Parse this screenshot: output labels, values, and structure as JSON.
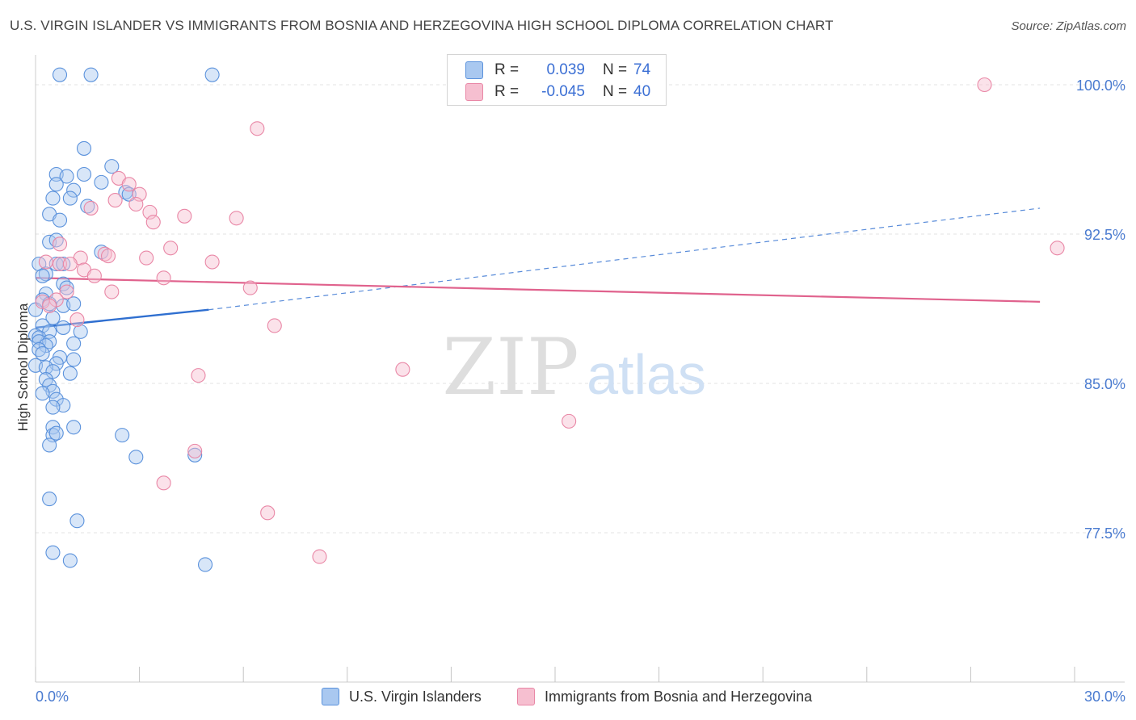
{
  "title": "U.S. VIRGIN ISLANDER VS IMMIGRANTS FROM BOSNIA AND HERZEGOVINA HIGH SCHOOL DIPLOMA CORRELATION CHART",
  "source": "Source: ZipAtlas.com",
  "watermark": {
    "zip": "ZIP",
    "atlas": "atlas"
  },
  "legend": {
    "rows": [
      {
        "r_label": "R =",
        "r_value": "0.039",
        "n_label": "N =",
        "n_value": "74"
      },
      {
        "r_label": "R =",
        "r_value": "-0.045",
        "n_label": "N =",
        "n_value": "40"
      }
    ]
  },
  "colors": {
    "blue_fill": "#a9c8f0",
    "blue_stroke": "#5b92dc",
    "blue_line": "#2f6fd0",
    "pink_fill": "#f6bfd0",
    "pink_stroke": "#e987a6",
    "pink_line": "#e0628d",
    "grid": "#e3e3e3",
    "axis_text": "#4a7bd0"
  },
  "chart_data": {
    "type": "scatter",
    "title": "U.S. VIRGIN ISLANDER VS IMMIGRANTS FROM BOSNIA AND HERZEGOVINA HIGH SCHOOL DIPLOMA CORRELATION CHART",
    "xlabel": "",
    "ylabel": "High School Diploma",
    "xlim": [
      0,
      30
    ],
    "ylim": [
      70.0,
      101.5
    ],
    "x_tick_labels": [
      "0.0%",
      "30.0%"
    ],
    "y_ticks": [
      77.5,
      85.0,
      92.5,
      100.0
    ],
    "y_tick_labels": [
      "77.5%",
      "85.0%",
      "92.5%",
      "100.0%"
    ],
    "legend_position": "bottom",
    "series": [
      {
        "name": "U.S. Virgin Islanders",
        "color": "blue",
        "trend": {
          "x0": 0,
          "y0": 87.8,
          "x1": 5.0,
          "y1": 88.7,
          "dashed_to_x": 29.0,
          "dashed_to_y": 93.8
        },
        "points": [
          [
            0.7,
            100.5
          ],
          [
            1.6,
            100.5
          ],
          [
            5.1,
            100.5
          ],
          [
            1.4,
            96.8
          ],
          [
            2.2,
            95.9
          ],
          [
            0.6,
            95.5
          ],
          [
            0.9,
            95.4
          ],
          [
            1.9,
            95.1
          ],
          [
            0.6,
            95.0
          ],
          [
            1.1,
            94.7
          ],
          [
            0.5,
            94.3
          ],
          [
            1.0,
            94.3
          ],
          [
            1.5,
            93.9
          ],
          [
            0.4,
            93.5
          ],
          [
            0.7,
            93.2
          ],
          [
            0.4,
            92.1
          ],
          [
            0.6,
            92.2
          ],
          [
            1.9,
            91.6
          ],
          [
            0.1,
            91.0
          ],
          [
            0.6,
            91.0
          ],
          [
            0.8,
            91.0
          ],
          [
            0.3,
            90.5
          ],
          [
            0.2,
            90.4
          ],
          [
            0.8,
            90.0
          ],
          [
            0.9,
            89.8
          ],
          [
            0.3,
            89.5
          ],
          [
            0.2,
            89.2
          ],
          [
            0.4,
            89.0
          ],
          [
            0.8,
            88.9
          ],
          [
            1.1,
            89.0
          ],
          [
            0.0,
            88.7
          ],
          [
            0.5,
            88.3
          ],
          [
            0.2,
            87.9
          ],
          [
            0.8,
            87.8
          ],
          [
            0.4,
            87.6
          ],
          [
            1.3,
            87.6
          ],
          [
            0.0,
            87.4
          ],
          [
            0.1,
            87.3
          ],
          [
            0.1,
            87.1
          ],
          [
            0.4,
            87.1
          ],
          [
            1.1,
            87.0
          ],
          [
            0.3,
            86.9
          ],
          [
            0.1,
            86.7
          ],
          [
            0.2,
            86.5
          ],
          [
            0.7,
            86.3
          ],
          [
            1.1,
            86.2
          ],
          [
            0.6,
            86.0
          ],
          [
            0.0,
            85.9
          ],
          [
            0.3,
            85.8
          ],
          [
            0.5,
            85.6
          ],
          [
            1.0,
            85.5
          ],
          [
            0.3,
            85.2
          ],
          [
            0.4,
            84.9
          ],
          [
            0.5,
            84.6
          ],
          [
            0.2,
            84.5
          ],
          [
            0.6,
            84.2
          ],
          [
            0.8,
            83.9
          ],
          [
            0.5,
            83.8
          ],
          [
            0.5,
            82.8
          ],
          [
            1.1,
            82.8
          ],
          [
            0.5,
            82.4
          ],
          [
            0.6,
            82.5
          ],
          [
            2.5,
            82.4
          ],
          [
            0.4,
            81.9
          ],
          [
            2.9,
            81.3
          ],
          [
            4.6,
            81.4
          ],
          [
            0.4,
            79.2
          ],
          [
            1.2,
            78.1
          ],
          [
            0.5,
            76.5
          ],
          [
            1.0,
            76.1
          ],
          [
            4.9,
            75.9
          ],
          [
            2.6,
            94.6
          ],
          [
            2.7,
            94.5
          ],
          [
            1.4,
            95.5
          ]
        ]
      },
      {
        "name": "Immigrants from Bosnia and Herzegovina",
        "color": "pink",
        "trend": {
          "x0": 0,
          "y0": 90.3,
          "x1": 29.0,
          "y1": 89.1
        },
        "points": [
          [
            27.4,
            100.0
          ],
          [
            6.4,
            97.8
          ],
          [
            2.4,
            95.3
          ],
          [
            2.7,
            95.0
          ],
          [
            3.0,
            94.5
          ],
          [
            2.3,
            94.2
          ],
          [
            2.9,
            94.0
          ],
          [
            1.6,
            93.8
          ],
          [
            3.3,
            93.6
          ],
          [
            4.3,
            93.4
          ],
          [
            5.8,
            93.3
          ],
          [
            3.4,
            93.1
          ],
          [
            0.7,
            92.0
          ],
          [
            3.9,
            91.8
          ],
          [
            2.0,
            91.5
          ],
          [
            2.1,
            91.4
          ],
          [
            1.3,
            91.3
          ],
          [
            3.2,
            91.3
          ],
          [
            5.1,
            91.1
          ],
          [
            0.3,
            91.1
          ],
          [
            0.7,
            91.0
          ],
          [
            1.0,
            91.0
          ],
          [
            1.4,
            90.7
          ],
          [
            1.7,
            90.4
          ],
          [
            3.7,
            90.3
          ],
          [
            6.2,
            89.8
          ],
          [
            2.2,
            89.6
          ],
          [
            0.9,
            89.6
          ],
          [
            0.2,
            89.1
          ],
          [
            0.6,
            89.2
          ],
          [
            0.4,
            88.9
          ],
          [
            1.2,
            88.2
          ],
          [
            6.9,
            87.9
          ],
          [
            10.6,
            85.7
          ],
          [
            4.7,
            85.4
          ],
          [
            15.4,
            83.1
          ],
          [
            4.6,
            81.6
          ],
          [
            3.7,
            80.0
          ],
          [
            6.7,
            78.5
          ],
          [
            8.2,
            76.3
          ]
        ]
      },
      {
        "name": "Immigrants from Bosnia and Herzegovina outlier",
        "color": "pink",
        "points": [
          [
            29.5,
            91.8
          ]
        ]
      }
    ]
  },
  "bottom_legend": {
    "items": [
      {
        "label": "U.S. Virgin Islanders"
      },
      {
        "label": "Immigrants from Bosnia and Herzegovina"
      }
    ]
  }
}
